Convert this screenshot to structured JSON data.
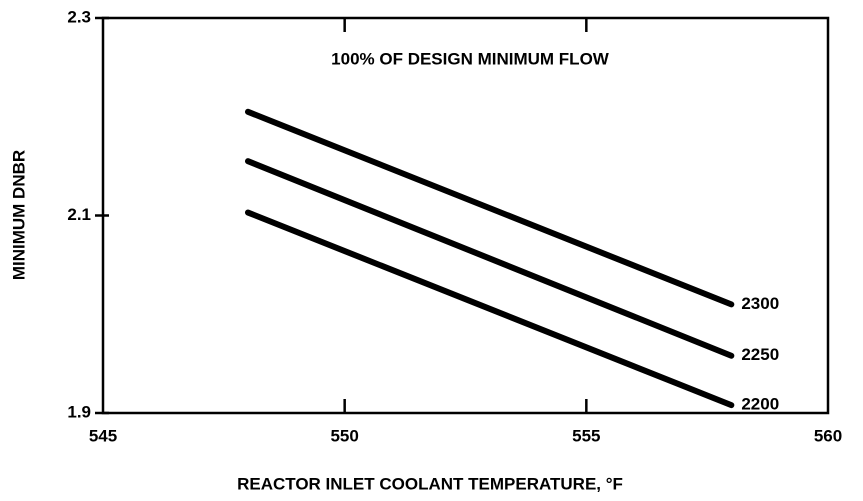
{
  "chart_data": {
    "type": "line",
    "title": "100% OF DESIGN MINIMUM FLOW",
    "xlabel": "REACTOR INLET COOLANT TEMPERATURE, °F",
    "ylabel": "MINIMUM DNBR",
    "x": [
      548,
      558
    ],
    "series": [
      {
        "name": "2300",
        "color": "#000000",
        "values": [
          2.205,
          2.01
        ]
      },
      {
        "name": "2250",
        "color": "#000000",
        "values": [
          2.155,
          1.958
        ]
      },
      {
        "name": "2200",
        "color": "#000000",
        "values": [
          2.103,
          1.908
        ]
      }
    ],
    "xlim": [
      545,
      560
    ],
    "xticks": [
      545,
      550,
      555,
      560
    ],
    "ylim": [
      1.9,
      2.3
    ],
    "yticks": [
      1.9,
      2.1,
      2.3
    ]
  }
}
